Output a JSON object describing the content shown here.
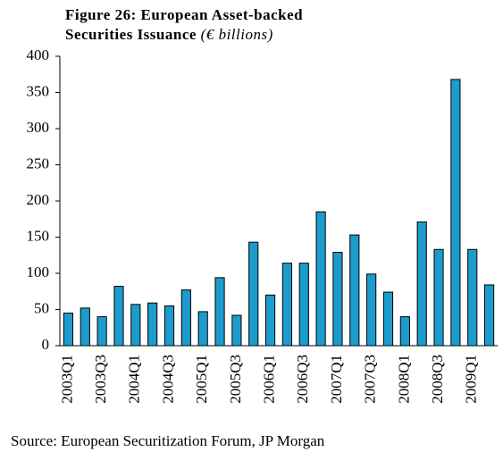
{
  "chart_data": {
    "type": "bar",
    "title": "Figure 26: European Asset-backed Securities Issuance",
    "unit": "(€ billions)",
    "source": "Source: European Securitization Forum, JP Morgan",
    "categories": [
      "2003Q1",
      null,
      "2003Q3",
      null,
      "2004Q1",
      null,
      "2004Q3",
      null,
      "2005Q1",
      null,
      "2005Q3",
      null,
      "2006Q1",
      null,
      "2006Q3",
      null,
      "2007Q1",
      null,
      "2007Q3",
      null,
      "2008Q1",
      null,
      "2008Q3",
      null,
      "2009Q1",
      null
    ],
    "values": [
      45,
      52,
      40,
      82,
      57,
      59,
      55,
      77,
      47,
      94,
      42,
      143,
      70,
      114,
      114,
      185,
      129,
      153,
      99,
      74,
      40,
      171,
      133,
      368,
      133,
      84
    ],
    "color": "#1b9ccc",
    "ylim": [
      0,
      400
    ],
    "yticks": [
      0,
      50,
      100,
      150,
      200,
      250,
      300,
      350,
      400
    ],
    "grid": false
  }
}
